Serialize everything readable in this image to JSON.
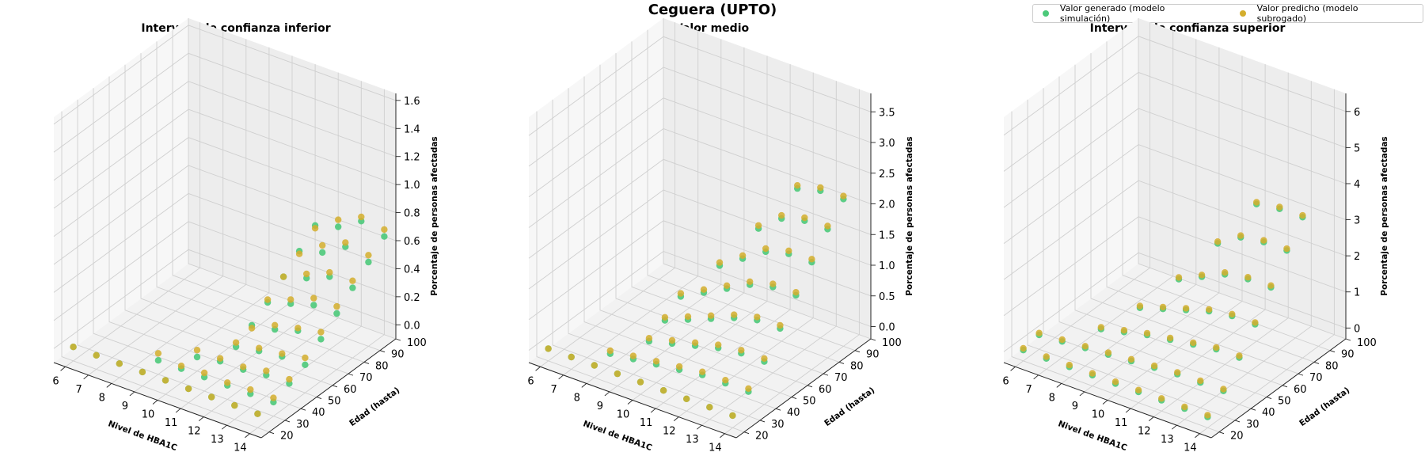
{
  "figure_title": "Ceguera (UPTO)",
  "legend": {
    "generated_label": "Valor generado (modelo simulación)",
    "predicted_label": "Valor predicho (modelo subrogado)",
    "generated_color": "#4cc97a",
    "predicted_color": "#d4ae2d"
  },
  "chart_data": [
    {
      "type": "scatter3d",
      "title": "Intervalo de confianza inferior",
      "xlabel": "Nivel de HBA1C",
      "ylabel": "Edad (hasta)",
      "zlabel": "Porcentaje de personas afectadas",
      "x_ticks": [
        "6",
        "7",
        "8",
        "9",
        "10",
        "11",
        "12",
        "13",
        "14"
      ],
      "y_ticks": [
        "20",
        "30",
        "40",
        "50",
        "60",
        "70",
        "80",
        "90",
        "100"
      ],
      "z_ticks": [
        "0.0",
        "0.2",
        "0.4",
        "0.6",
        "0.8",
        "1.0",
        "1.2",
        "1.4",
        "1.6"
      ],
      "xlim": [
        5.5,
        14.5
      ],
      "ylim": [
        15,
        100
      ],
      "zlim": [
        -0.1,
        1.65
      ],
      "points": [
        {
          "x": 6,
          "y": 20,
          "g": 0.0,
          "p": 0.0
        },
        {
          "x": 7,
          "y": 20,
          "g": 0.0,
          "p": 0.0
        },
        {
          "x": 8,
          "y": 20,
          "g": 0.0,
          "p": 0.0
        },
        {
          "x": 9,
          "y": 20,
          "g": 0.0,
          "p": 0.0
        },
        {
          "x": 9,
          "y": 30,
          "g": 0.0,
          "p": 0.05
        },
        {
          "x": 10,
          "y": 20,
          "g": 0.0,
          "p": 0.0
        },
        {
          "x": 10,
          "y": 30,
          "g": 0.0,
          "p": 0.02
        },
        {
          "x": 10,
          "y": 40,
          "g": 0.0,
          "p": 0.05
        },
        {
          "x": 11,
          "y": 20,
          "g": 0.0,
          "p": 0.0
        },
        {
          "x": 11,
          "y": 30,
          "g": 0.0,
          "p": 0.03
        },
        {
          "x": 11,
          "y": 40,
          "g": 0.03,
          "p": 0.05
        },
        {
          "x": 11,
          "y": 50,
          "g": 0.05,
          "p": 0.08
        },
        {
          "x": 11,
          "y": 60,
          "g": 0.12,
          "p": 0.1
        },
        {
          "x": 11,
          "y": 70,
          "g": 0.2,
          "p": 0.22
        },
        {
          "x": 11,
          "y": 80,
          "g": 0.3,
          "p": 0.3
        },
        {
          "x": 11,
          "y": 90,
          "g": 0.4,
          "p": 0.38
        },
        {
          "x": 11,
          "y": 100,
          "g": 0.5,
          "p": 0.48
        },
        {
          "x": 12,
          "y": 20,
          "g": 0.0,
          "p": 0.0
        },
        {
          "x": 12,
          "y": 30,
          "g": 0.0,
          "p": 0.02
        },
        {
          "x": 12,
          "y": 40,
          "g": 0.03,
          "p": 0.05
        },
        {
          "x": 12,
          "y": 50,
          "g": 0.08,
          "p": 0.1
        },
        {
          "x": 12,
          "y": 60,
          "g": 0.15,
          "p": 0.18
        },
        {
          "x": 12,
          "y": 70,
          "g": 0.25,
          "p": 0.28
        },
        {
          "x": 12,
          "y": 80,
          "g": 0.35,
          "p": 0.38
        },
        {
          "x": 12,
          "y": 90,
          "g": 0.45,
          "p": 0.5
        },
        {
          "x": 12,
          "y": 100,
          "g": 0.55,
          "p": 0.6
        },
        {
          "x": 13,
          "y": 20,
          "g": 0.0,
          "p": 0.0
        },
        {
          "x": 13,
          "y": 30,
          "g": 0.0,
          "p": 0.03
        },
        {
          "x": 13,
          "y": 40,
          "g": 0.05,
          "p": 0.08
        },
        {
          "x": 13,
          "y": 50,
          "g": 0.1,
          "p": 0.12
        },
        {
          "x": 13,
          "y": 60,
          "g": 0.2,
          "p": 0.22
        },
        {
          "x": 13,
          "y": 70,
          "g": 0.3,
          "p": 0.35
        },
        {
          "x": 13,
          "y": 80,
          "g": 0.42,
          "p": 0.45
        },
        {
          "x": 13,
          "y": 90,
          "g": 0.55,
          "p": 0.58
        },
        {
          "x": 13,
          "y": 100,
          "g": 0.65,
          "p": 0.68
        },
        {
          "x": 14,
          "y": 20,
          "g": 0.0,
          "p": 0.0
        },
        {
          "x": 14,
          "y": 30,
          "g": 0.0,
          "p": 0.03
        },
        {
          "x": 14,
          "y": 40,
          "g": 0.05,
          "p": 0.08
        },
        {
          "x": 14,
          "y": 50,
          "g": 0.1,
          "p": 0.15
        },
        {
          "x": 14,
          "y": 60,
          "g": 0.2,
          "p": 0.25
        },
        {
          "x": 14,
          "y": 70,
          "g": 0.3,
          "p": 0.35
        },
        {
          "x": 14,
          "y": 80,
          "g": 0.4,
          "p": 0.45
        },
        {
          "x": 14,
          "y": 90,
          "g": 0.5,
          "p": 0.55
        },
        {
          "x": 14,
          "y": 100,
          "g": 0.6,
          "p": 0.65
        }
      ]
    },
    {
      "type": "scatter3d",
      "title": "Valor medio",
      "xlabel": "Nivel de HBA1C",
      "ylabel": "Edad (hasta)",
      "zlabel": "Porcentaje de personas afectadas",
      "x_ticks": [
        "6",
        "7",
        "8",
        "9",
        "10",
        "11",
        "12",
        "13",
        "14"
      ],
      "y_ticks": [
        "20",
        "30",
        "40",
        "50",
        "60",
        "70",
        "80",
        "90",
        "100"
      ],
      "z_ticks": [
        "0.0",
        "0.5",
        "1.0",
        "1.5",
        "2.0",
        "2.5",
        "3.0",
        "3.5"
      ],
      "xlim": [
        5.5,
        14.5
      ],
      "ylim": [
        15,
        100
      ],
      "zlim": [
        -0.2,
        3.8
      ],
      "points": [
        {
          "x": 6,
          "y": 20,
          "g": 0.0,
          "p": 0.0
        },
        {
          "x": 7,
          "y": 20,
          "g": 0.0,
          "p": 0.0
        },
        {
          "x": 8,
          "y": 20,
          "g": 0.0,
          "p": 0.0
        },
        {
          "x": 8,
          "y": 30,
          "g": 0.0,
          "p": 0.05
        },
        {
          "x": 9,
          "y": 20,
          "g": 0.0,
          "p": 0.0
        },
        {
          "x": 9,
          "y": 30,
          "g": 0.05,
          "p": 0.1
        },
        {
          "x": 9,
          "y": 40,
          "g": 0.15,
          "p": 0.2
        },
        {
          "x": 9,
          "y": 50,
          "g": 0.3,
          "p": 0.35
        },
        {
          "x": 9,
          "y": 60,
          "g": 0.5,
          "p": 0.55
        },
        {
          "x": 10,
          "y": 20,
          "g": 0.0,
          "p": 0.0
        },
        {
          "x": 10,
          "y": 30,
          "g": 0.1,
          "p": 0.15
        },
        {
          "x": 10,
          "y": 40,
          "g": 0.25,
          "p": 0.3
        },
        {
          "x": 10,
          "y": 50,
          "g": 0.45,
          "p": 0.5
        },
        {
          "x": 10,
          "y": 60,
          "g": 0.7,
          "p": 0.75
        },
        {
          "x": 10,
          "y": 70,
          "g": 0.95,
          "p": 1.0
        },
        {
          "x": 11,
          "y": 20,
          "g": 0.0,
          "p": 0.0
        },
        {
          "x": 11,
          "y": 30,
          "g": 0.15,
          "p": 0.2
        },
        {
          "x": 11,
          "y": 40,
          "g": 0.35,
          "p": 0.4
        },
        {
          "x": 11,
          "y": 50,
          "g": 0.6,
          "p": 0.65
        },
        {
          "x": 11,
          "y": 60,
          "g": 0.9,
          "p": 0.95
        },
        {
          "x": 11,
          "y": 70,
          "g": 1.2,
          "p": 1.25
        },
        {
          "x": 11,
          "y": 80,
          "g": 1.5,
          "p": 1.55
        },
        {
          "x": 12,
          "y": 20,
          "g": 0.0,
          "p": 0.0
        },
        {
          "x": 12,
          "y": 30,
          "g": 0.2,
          "p": 0.25
        },
        {
          "x": 12,
          "y": 40,
          "g": 0.45,
          "p": 0.5
        },
        {
          "x": 12,
          "y": 50,
          "g": 0.75,
          "p": 0.8
        },
        {
          "x": 12,
          "y": 60,
          "g": 1.1,
          "p": 1.15
        },
        {
          "x": 12,
          "y": 70,
          "g": 1.45,
          "p": 1.5
        },
        {
          "x": 12,
          "y": 80,
          "g": 1.8,
          "p": 1.85
        },
        {
          "x": 12,
          "y": 90,
          "g": 2.1,
          "p": 2.15
        },
        {
          "x": 13,
          "y": 20,
          "g": 0.0,
          "p": 0.0
        },
        {
          "x": 13,
          "y": 30,
          "g": 0.2,
          "p": 0.25
        },
        {
          "x": 13,
          "y": 40,
          "g": 0.5,
          "p": 0.55
        },
        {
          "x": 13,
          "y": 50,
          "g": 0.85,
          "p": 0.9
        },
        {
          "x": 13,
          "y": 60,
          "g": 1.2,
          "p": 1.25
        },
        {
          "x": 13,
          "y": 70,
          "g": 1.55,
          "p": 1.6
        },
        {
          "x": 13,
          "y": 80,
          "g": 1.9,
          "p": 1.95
        },
        {
          "x": 13,
          "y": 90,
          "g": 2.2,
          "p": 2.25
        },
        {
          "x": 14,
          "y": 20,
          "g": 0.0,
          "p": 0.0
        },
        {
          "x": 14,
          "y": 30,
          "g": 0.2,
          "p": 0.25
        },
        {
          "x": 14,
          "y": 40,
          "g": 0.5,
          "p": 0.55
        },
        {
          "x": 14,
          "y": 50,
          "g": 0.85,
          "p": 0.9
        },
        {
          "x": 14,
          "y": 60,
          "g": 1.2,
          "p": 1.25
        },
        {
          "x": 14,
          "y": 70,
          "g": 1.55,
          "p": 1.6
        },
        {
          "x": 14,
          "y": 80,
          "g": 1.9,
          "p": 1.95
        },
        {
          "x": 14,
          "y": 90,
          "g": 2.2,
          "p": 2.25
        }
      ]
    },
    {
      "type": "scatter3d",
      "title": "Intervalo de confianza superior",
      "xlabel": "Nivel de HBA1C",
      "ylabel": "Edad (hasta)",
      "zlabel": "Porcentaje de personas afectadas",
      "x_ticks": [
        "6",
        "7",
        "8",
        "9",
        "10",
        "11",
        "12",
        "13",
        "14"
      ],
      "y_ticks": [
        "20",
        "30",
        "40",
        "50",
        "60",
        "70",
        "80",
        "90",
        "100"
      ],
      "z_ticks": [
        "0",
        "1",
        "2",
        "3",
        "4",
        "5",
        "6"
      ],
      "xlim": [
        5.5,
        14.5
      ],
      "ylim": [
        15,
        100
      ],
      "zlim": [
        -0.3,
        6.5
      ],
      "points": [
        {
          "x": 6,
          "y": 20,
          "g": 0.0,
          "p": 0.05
        },
        {
          "x": 6,
          "y": 30,
          "g": 0.1,
          "p": 0.15
        },
        {
          "x": 7,
          "y": 20,
          "g": 0.0,
          "p": 0.05
        },
        {
          "x": 7,
          "y": 30,
          "g": 0.15,
          "p": 0.2
        },
        {
          "x": 8,
          "y": 20,
          "g": 0.0,
          "p": 0.05
        },
        {
          "x": 8,
          "y": 30,
          "g": 0.2,
          "p": 0.25
        },
        {
          "x": 8,
          "y": 40,
          "g": 0.4,
          "p": 0.45
        },
        {
          "x": 9,
          "y": 20,
          "g": 0.0,
          "p": 0.05
        },
        {
          "x": 9,
          "y": 30,
          "g": 0.25,
          "p": 0.3
        },
        {
          "x": 9,
          "y": 40,
          "g": 0.55,
          "p": 0.6
        },
        {
          "x": 9,
          "y": 50,
          "g": 0.9,
          "p": 0.95
        },
        {
          "x": 10,
          "y": 20,
          "g": 0.0,
          "p": 0.05
        },
        {
          "x": 10,
          "y": 30,
          "g": 0.3,
          "p": 0.35
        },
        {
          "x": 10,
          "y": 40,
          "g": 0.7,
          "p": 0.75
        },
        {
          "x": 10,
          "y": 50,
          "g": 1.1,
          "p": 1.15
        },
        {
          "x": 10,
          "y": 60,
          "g": 1.6,
          "p": 1.65
        },
        {
          "x": 11,
          "y": 20,
          "g": 0.0,
          "p": 0.05
        },
        {
          "x": 11,
          "y": 30,
          "g": 0.35,
          "p": 0.4
        },
        {
          "x": 11,
          "y": 40,
          "g": 0.8,
          "p": 0.85
        },
        {
          "x": 11,
          "y": 50,
          "g": 1.3,
          "p": 1.35
        },
        {
          "x": 11,
          "y": 60,
          "g": 1.9,
          "p": 1.95
        },
        {
          "x": 11,
          "y": 70,
          "g": 2.5,
          "p": 2.55
        },
        {
          "x": 12,
          "y": 20,
          "g": 0.0,
          "p": 0.05
        },
        {
          "x": 12,
          "y": 30,
          "g": 0.4,
          "p": 0.45
        },
        {
          "x": 12,
          "y": 40,
          "g": 0.9,
          "p": 0.95
        },
        {
          "x": 12,
          "y": 50,
          "g": 1.5,
          "p": 1.55
        },
        {
          "x": 12,
          "y": 60,
          "g": 2.2,
          "p": 2.25
        },
        {
          "x": 12,
          "y": 70,
          "g": 2.9,
          "p": 2.95
        },
        {
          "x": 12,
          "y": 80,
          "g": 3.5,
          "p": 3.55
        },
        {
          "x": 13,
          "y": 20,
          "g": 0.0,
          "p": 0.05
        },
        {
          "x": 13,
          "y": 30,
          "g": 0.4,
          "p": 0.45
        },
        {
          "x": 13,
          "y": 40,
          "g": 1.0,
          "p": 1.05
        },
        {
          "x": 13,
          "y": 50,
          "g": 1.6,
          "p": 1.65
        },
        {
          "x": 13,
          "y": 60,
          "g": 2.3,
          "p": 2.35
        },
        {
          "x": 13,
          "y": 70,
          "g": 3.0,
          "p": 3.05
        },
        {
          "x": 13,
          "y": 80,
          "g": 3.6,
          "p": 3.65
        },
        {
          "x": 14,
          "y": 20,
          "g": 0.0,
          "p": 0.05
        },
        {
          "x": 14,
          "y": 30,
          "g": 0.4,
          "p": 0.45
        },
        {
          "x": 14,
          "y": 40,
          "g": 1.0,
          "p": 1.05
        },
        {
          "x": 14,
          "y": 50,
          "g": 1.6,
          "p": 1.65
        },
        {
          "x": 14,
          "y": 60,
          "g": 2.3,
          "p": 2.35
        },
        {
          "x": 14,
          "y": 70,
          "g": 3.0,
          "p": 3.05
        },
        {
          "x": 14,
          "y": 80,
          "g": 3.6,
          "p": 3.65
        }
      ]
    }
  ]
}
